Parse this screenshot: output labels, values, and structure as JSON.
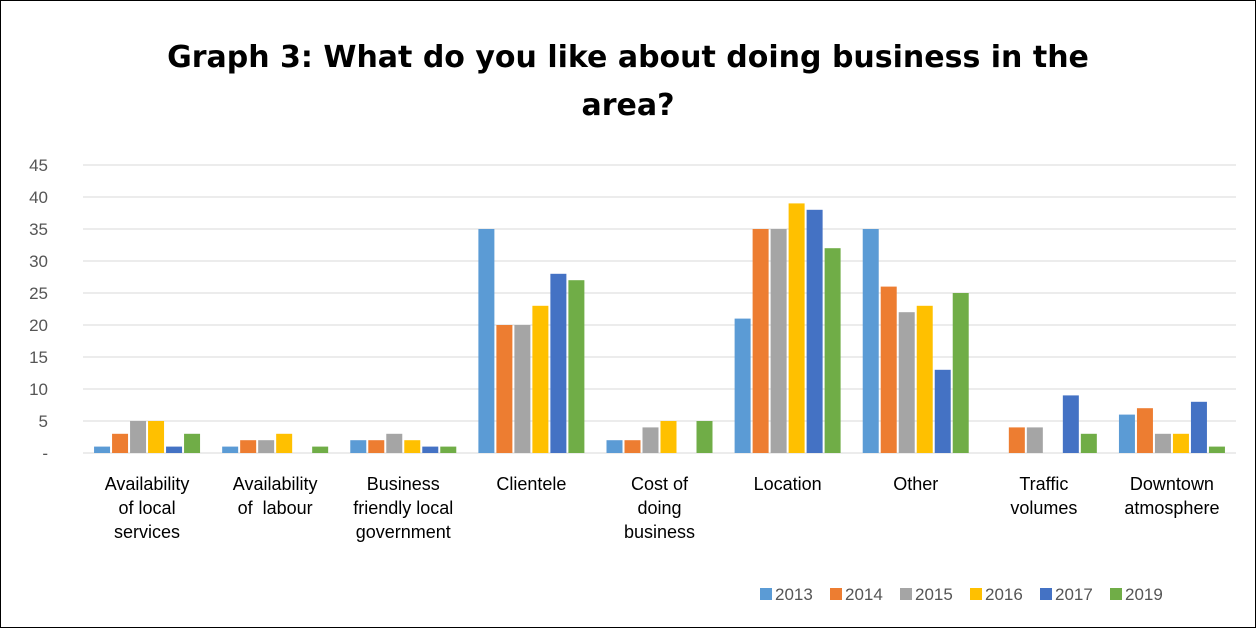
{
  "chart_data": {
    "type": "bar",
    "title_lines": [
      "Graph 3: What do you like about doing business in the",
      "area?"
    ],
    "xlabel": "",
    "ylabel": "",
    "ylim": [
      0,
      45
    ],
    "yticks": [
      {
        "value": 0,
        "label": "-"
      },
      {
        "value": 5,
        "label": "5"
      },
      {
        "value": 10,
        "label": "10"
      },
      {
        "value": 15,
        "label": "15"
      },
      {
        "value": 20,
        "label": "20"
      },
      {
        "value": 25,
        "label": "25"
      },
      {
        "value": 30,
        "label": "30"
      },
      {
        "value": 35,
        "label": "35"
      },
      {
        "value": 40,
        "label": "40"
      },
      {
        "value": 45,
        "label": "45"
      }
    ],
    "grid": true,
    "legend_position": "bottom-right",
    "categories": [
      [
        "Availability",
        "of local",
        "services"
      ],
      [
        "Availability",
        "of  labour"
      ],
      [
        "Business",
        "friendly local",
        "government"
      ],
      [
        "Clientele"
      ],
      [
        "Cost of",
        "doing",
        "business"
      ],
      [
        "Location"
      ],
      [
        "Other"
      ],
      [
        "Traffic",
        "volumes"
      ],
      [
        "Downtown",
        "atmosphere"
      ]
    ],
    "series": [
      {
        "name": "2013",
        "color": "#5B9BD5",
        "values": [
          1,
          1,
          2,
          35,
          2,
          21,
          35,
          0,
          6
        ]
      },
      {
        "name": "2014",
        "color": "#ED7D31",
        "values": [
          3,
          2,
          2,
          20,
          2,
          35,
          26,
          4,
          7
        ]
      },
      {
        "name": "2015",
        "color": "#A5A5A5",
        "values": [
          5,
          2,
          3,
          20,
          4,
          35,
          22,
          4,
          3
        ]
      },
      {
        "name": "2016",
        "color": "#FFC000",
        "values": [
          5,
          3,
          2,
          23,
          5,
          39,
          23,
          0,
          3
        ]
      },
      {
        "name": "2017",
        "color": "#4472C4",
        "values": [
          1,
          0,
          1,
          28,
          0,
          38,
          13,
          9,
          8
        ]
      },
      {
        "name": "2019",
        "color": "#70AD47",
        "values": [
          3,
          1,
          1,
          27,
          5,
          32,
          25,
          3,
          1
        ]
      }
    ]
  }
}
